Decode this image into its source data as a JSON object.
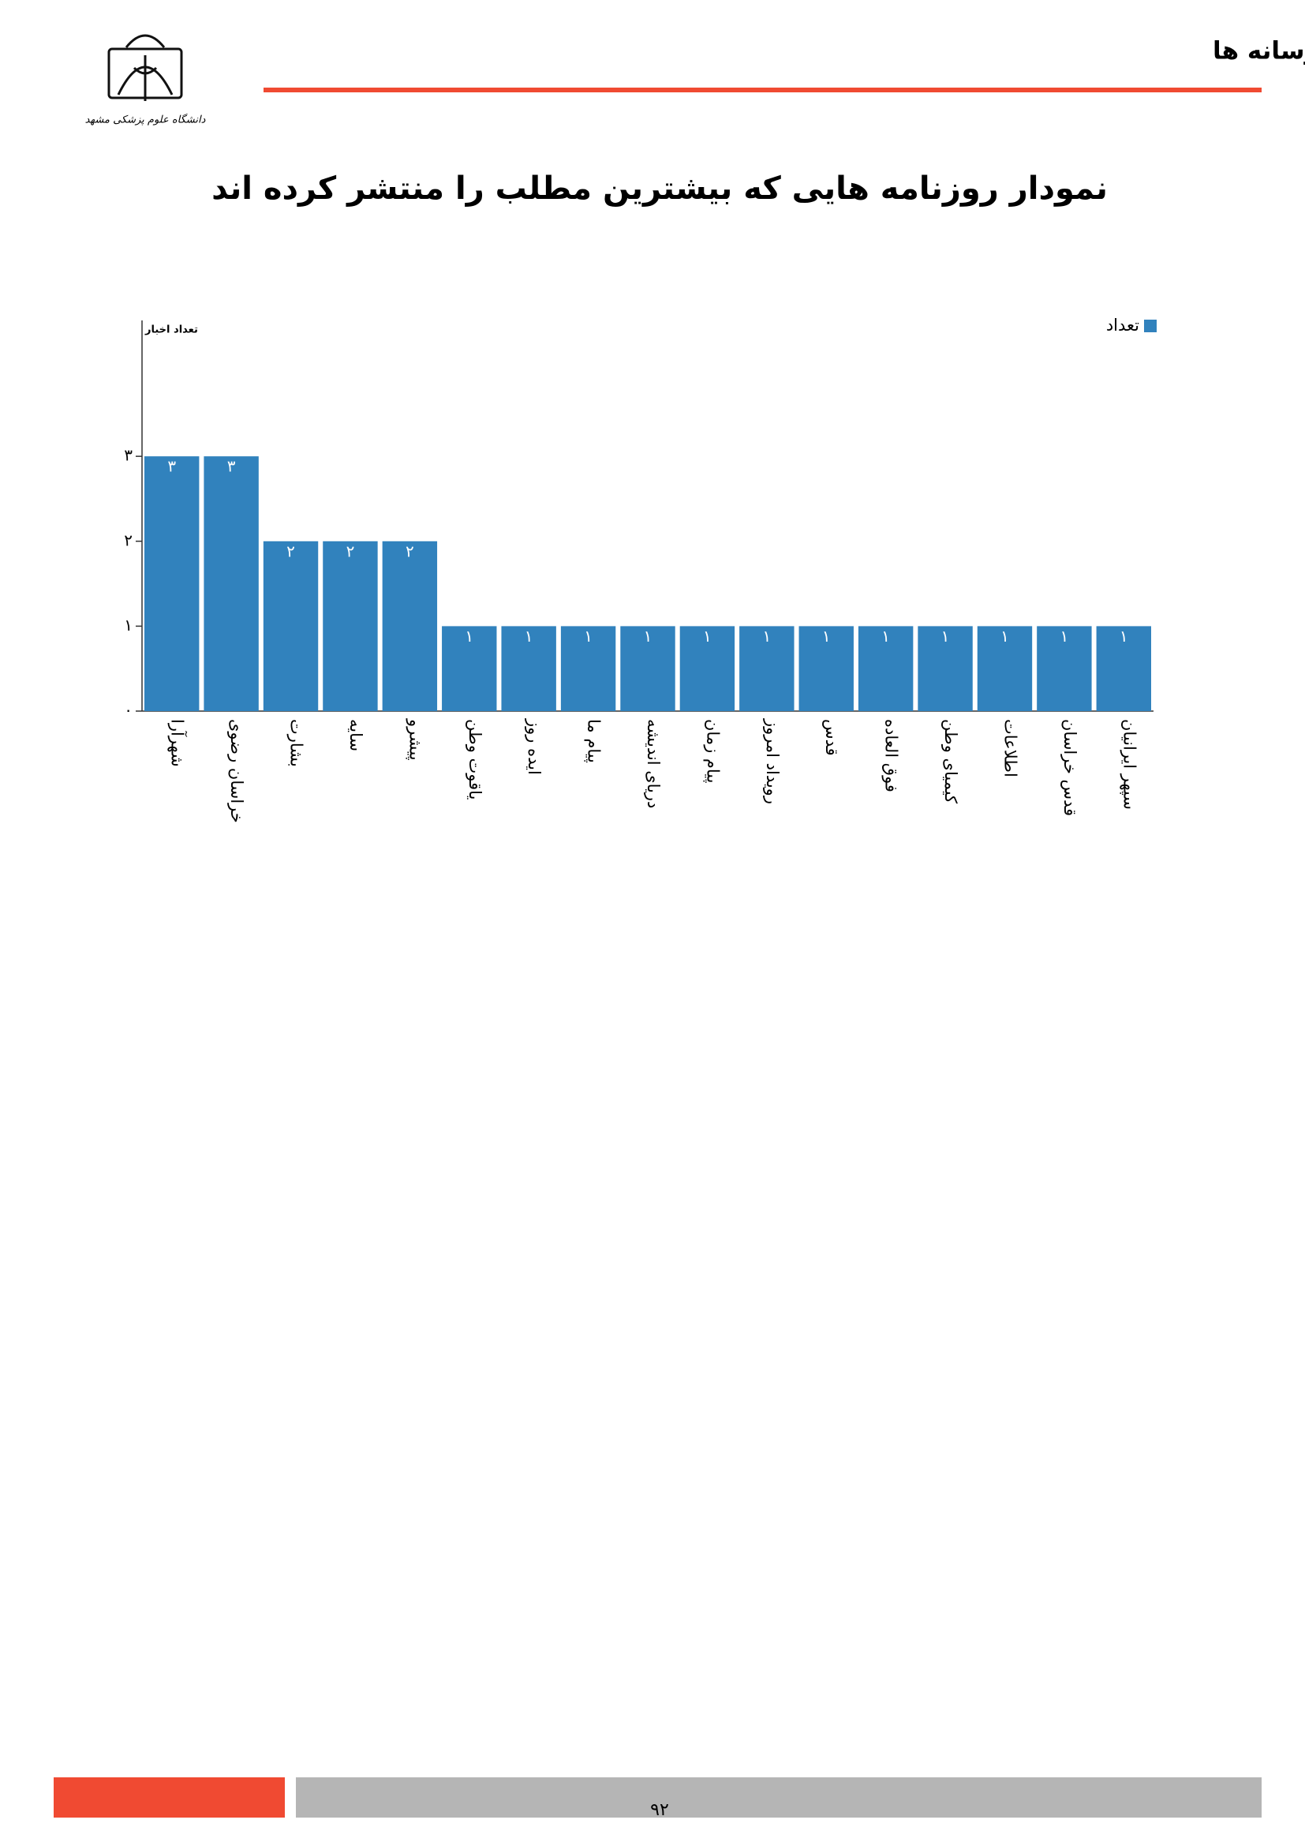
{
  "header": {
    "title": "انعکاس اخبار دانشگاه علوم پزشکی مشهد در رسانه ها",
    "logo_text": "دانشگاه علوم پزشکی مشهد"
  },
  "chart_data": {
    "type": "bar",
    "title": "نمودار روزنامه هایی که بیشترین مطلب را منتشر کرده اند",
    "y_label": "تعداد اخبار",
    "categories": [
      "شهرآرا",
      "خراسان رضوی",
      "بشارت",
      "سایه",
      "پیشرو",
      "یاقوت وطن",
      "ایده روز",
      "پیام ما",
      "دریای اندیشه",
      "پیام زمان",
      "رویداد امروز",
      "قدس",
      "فوق العاده",
      "کیمیای وطن",
      "اطلاعات",
      "قدس خراسان",
      "سپهر ایرانیان"
    ],
    "series": [
      {
        "name": "تعداد",
        "color": "#3182bd",
        "values": [
          3,
          3,
          2,
          2,
          2,
          1,
          1,
          1,
          1,
          1,
          1,
          1,
          1,
          1,
          1,
          1,
          1
        ],
        "value_labels": [
          "۳",
          "۳",
          "۲",
          "۲",
          "۲",
          "۱",
          "۱",
          "۱",
          "۱",
          "۱",
          "۱",
          "۱",
          "۱",
          "۱",
          "۱",
          "۱",
          "۱"
        ]
      }
    ],
    "ylim": [
      0,
      4.6
    ],
    "yticks": [
      {
        "value": 0,
        "label": "۰"
      },
      {
        "value": 1,
        "label": "۱"
      },
      {
        "value": 2,
        "label": "۲"
      },
      {
        "value": 3,
        "label": "۳"
      }
    ],
    "legend": "top-right",
    "grid": false
  },
  "footer": {
    "page_number": "۹۲"
  }
}
